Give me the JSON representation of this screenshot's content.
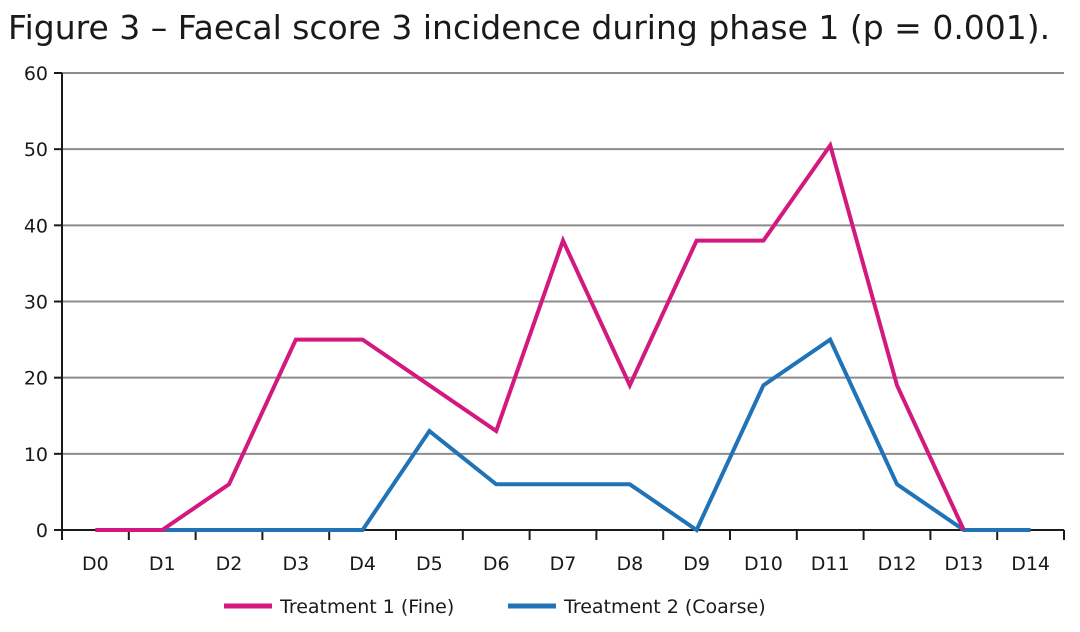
{
  "chart_data": {
    "type": "line",
    "title": "Figure 3 – Faecal score 3 incidence during phase 1 (p = 0.001).",
    "xlabel": "",
    "ylabel": "",
    "categories": [
      "D0",
      "D1",
      "D2",
      "D3",
      "D4",
      "D5",
      "D6",
      "D7",
      "D8",
      "D9",
      "D10",
      "D11",
      "D12",
      "D13",
      "D14"
    ],
    "ylim": [
      0,
      60
    ],
    "yticks": [
      "0",
      "10",
      "20",
      "30",
      "40",
      "50",
      "60"
    ],
    "grid": true,
    "legend_position": "bottom",
    "series": [
      {
        "name": "Treatment 1 (Fine)",
        "color": "#d3197f",
        "values": [
          0,
          0,
          6,
          25,
          25,
          19,
          13,
          38,
          19,
          38,
          38,
          50.5,
          19,
          0,
          null
        ]
      },
      {
        "name": "Treatment 2 (Coarse)",
        "color": "#1f73b6",
        "values": [
          0,
          0,
          0,
          0,
          0,
          13,
          6,
          6,
          6,
          0,
          19,
          25,
          6,
          0,
          0
        ]
      }
    ]
  }
}
